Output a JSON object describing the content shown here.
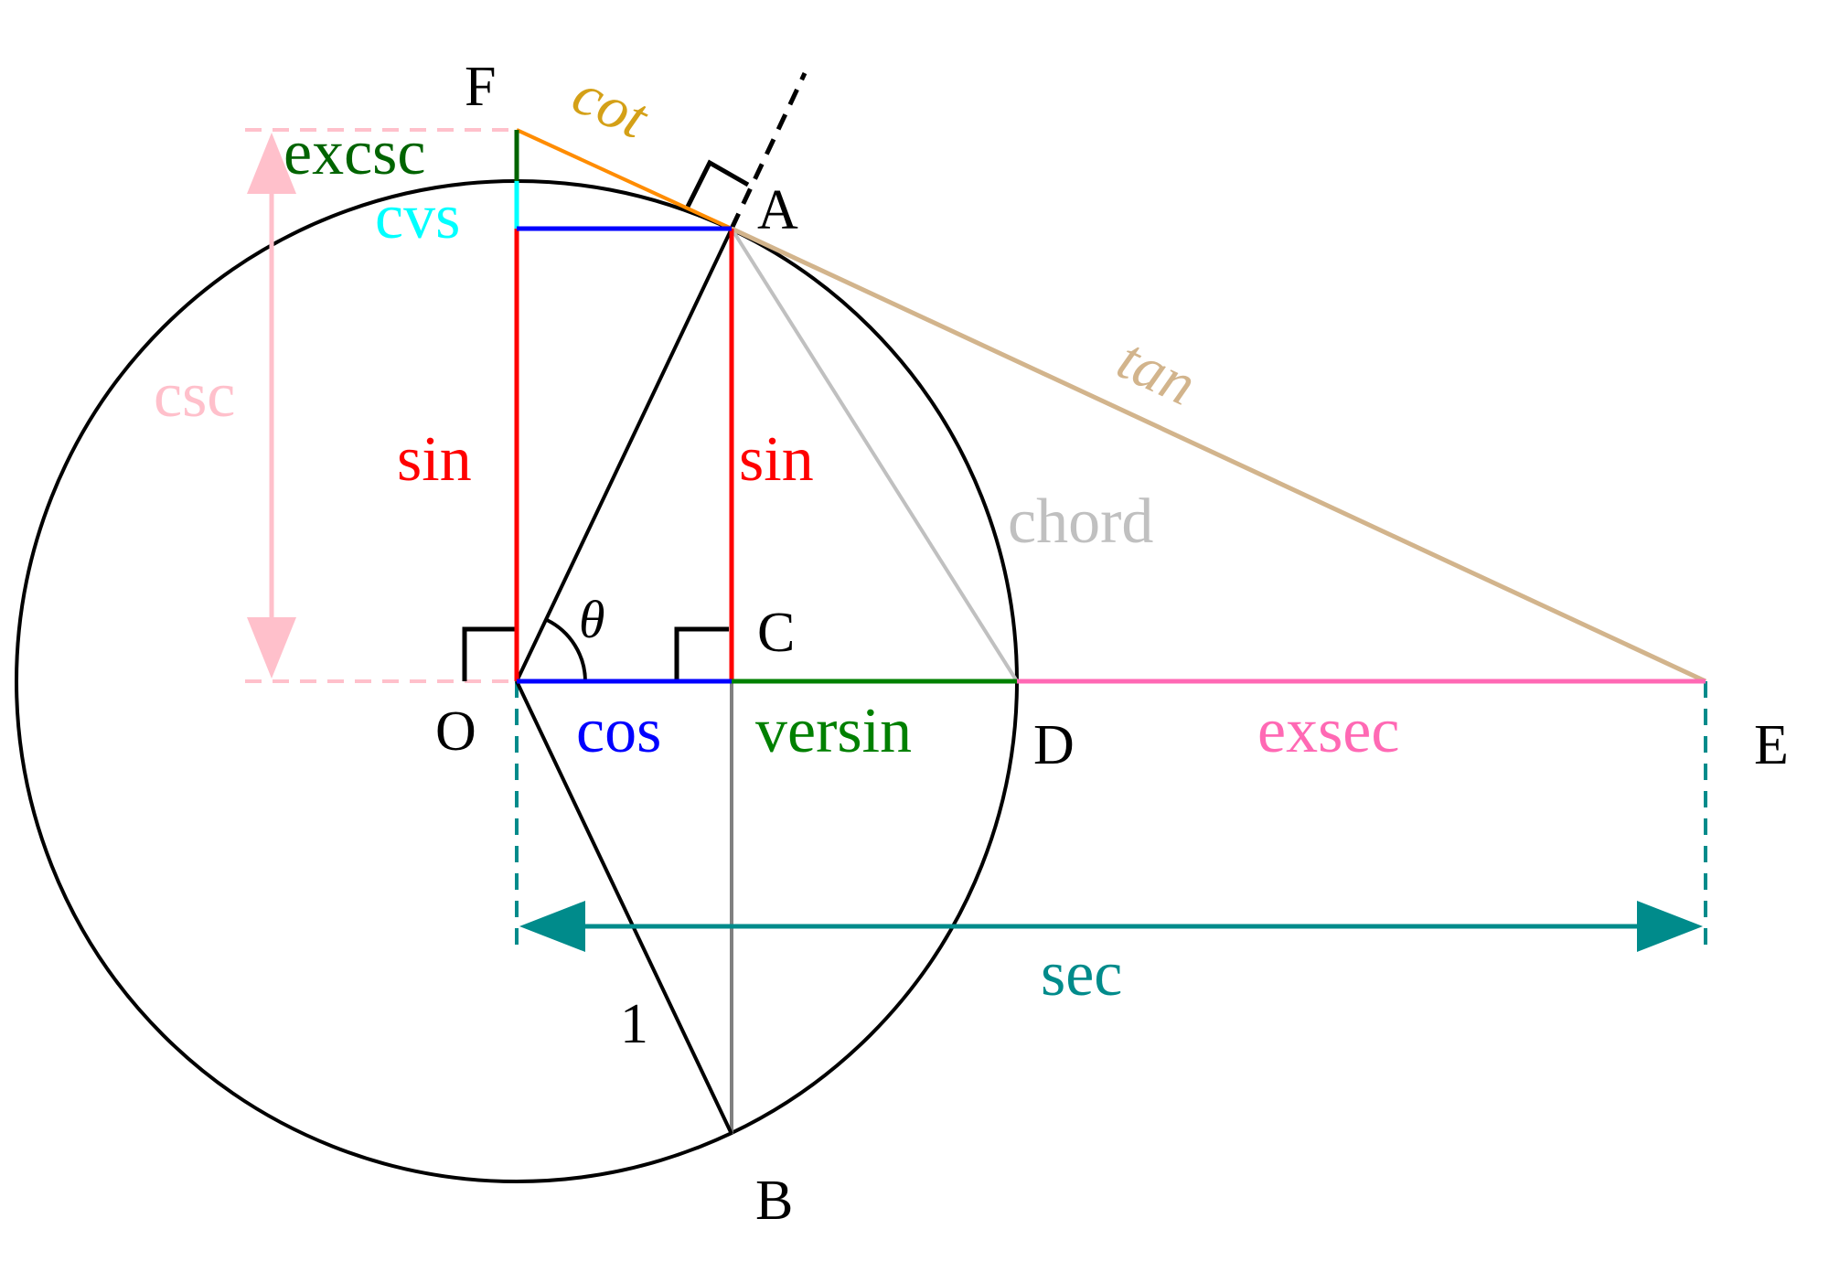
{
  "colors": {
    "circle": "#000000",
    "radius": "#000000",
    "sin": "#ff0000",
    "cos": "#0000ff",
    "versin": "#008000",
    "exsec": "#ff69b4",
    "sec": "#008b8b",
    "csc": "#ffc0cb",
    "cvs": "#00ffff",
    "excsc": "#006400",
    "cot": "#ff8c00",
    "cot_label": "#d4a017",
    "tan": "#d2b48c",
    "chord": "#c0c0c0",
    "vertical_gray": "#808080"
  },
  "labels": {
    "points": {
      "O": "O",
      "A": "A",
      "B": "B",
      "C": "C",
      "D": "D",
      "E": "E",
      "F": "F"
    },
    "theta": "θ",
    "radius": "1",
    "functions": {
      "sin_left": "sin",
      "sin_right": "sin",
      "cos": "cos",
      "versin": "versin",
      "exsec": "exsec",
      "sec": "sec",
      "csc": "csc",
      "cvs": "cvs",
      "excsc": "excsc",
      "cot": "cot",
      "tan": "tan",
      "chord": "chord"
    }
  }
}
